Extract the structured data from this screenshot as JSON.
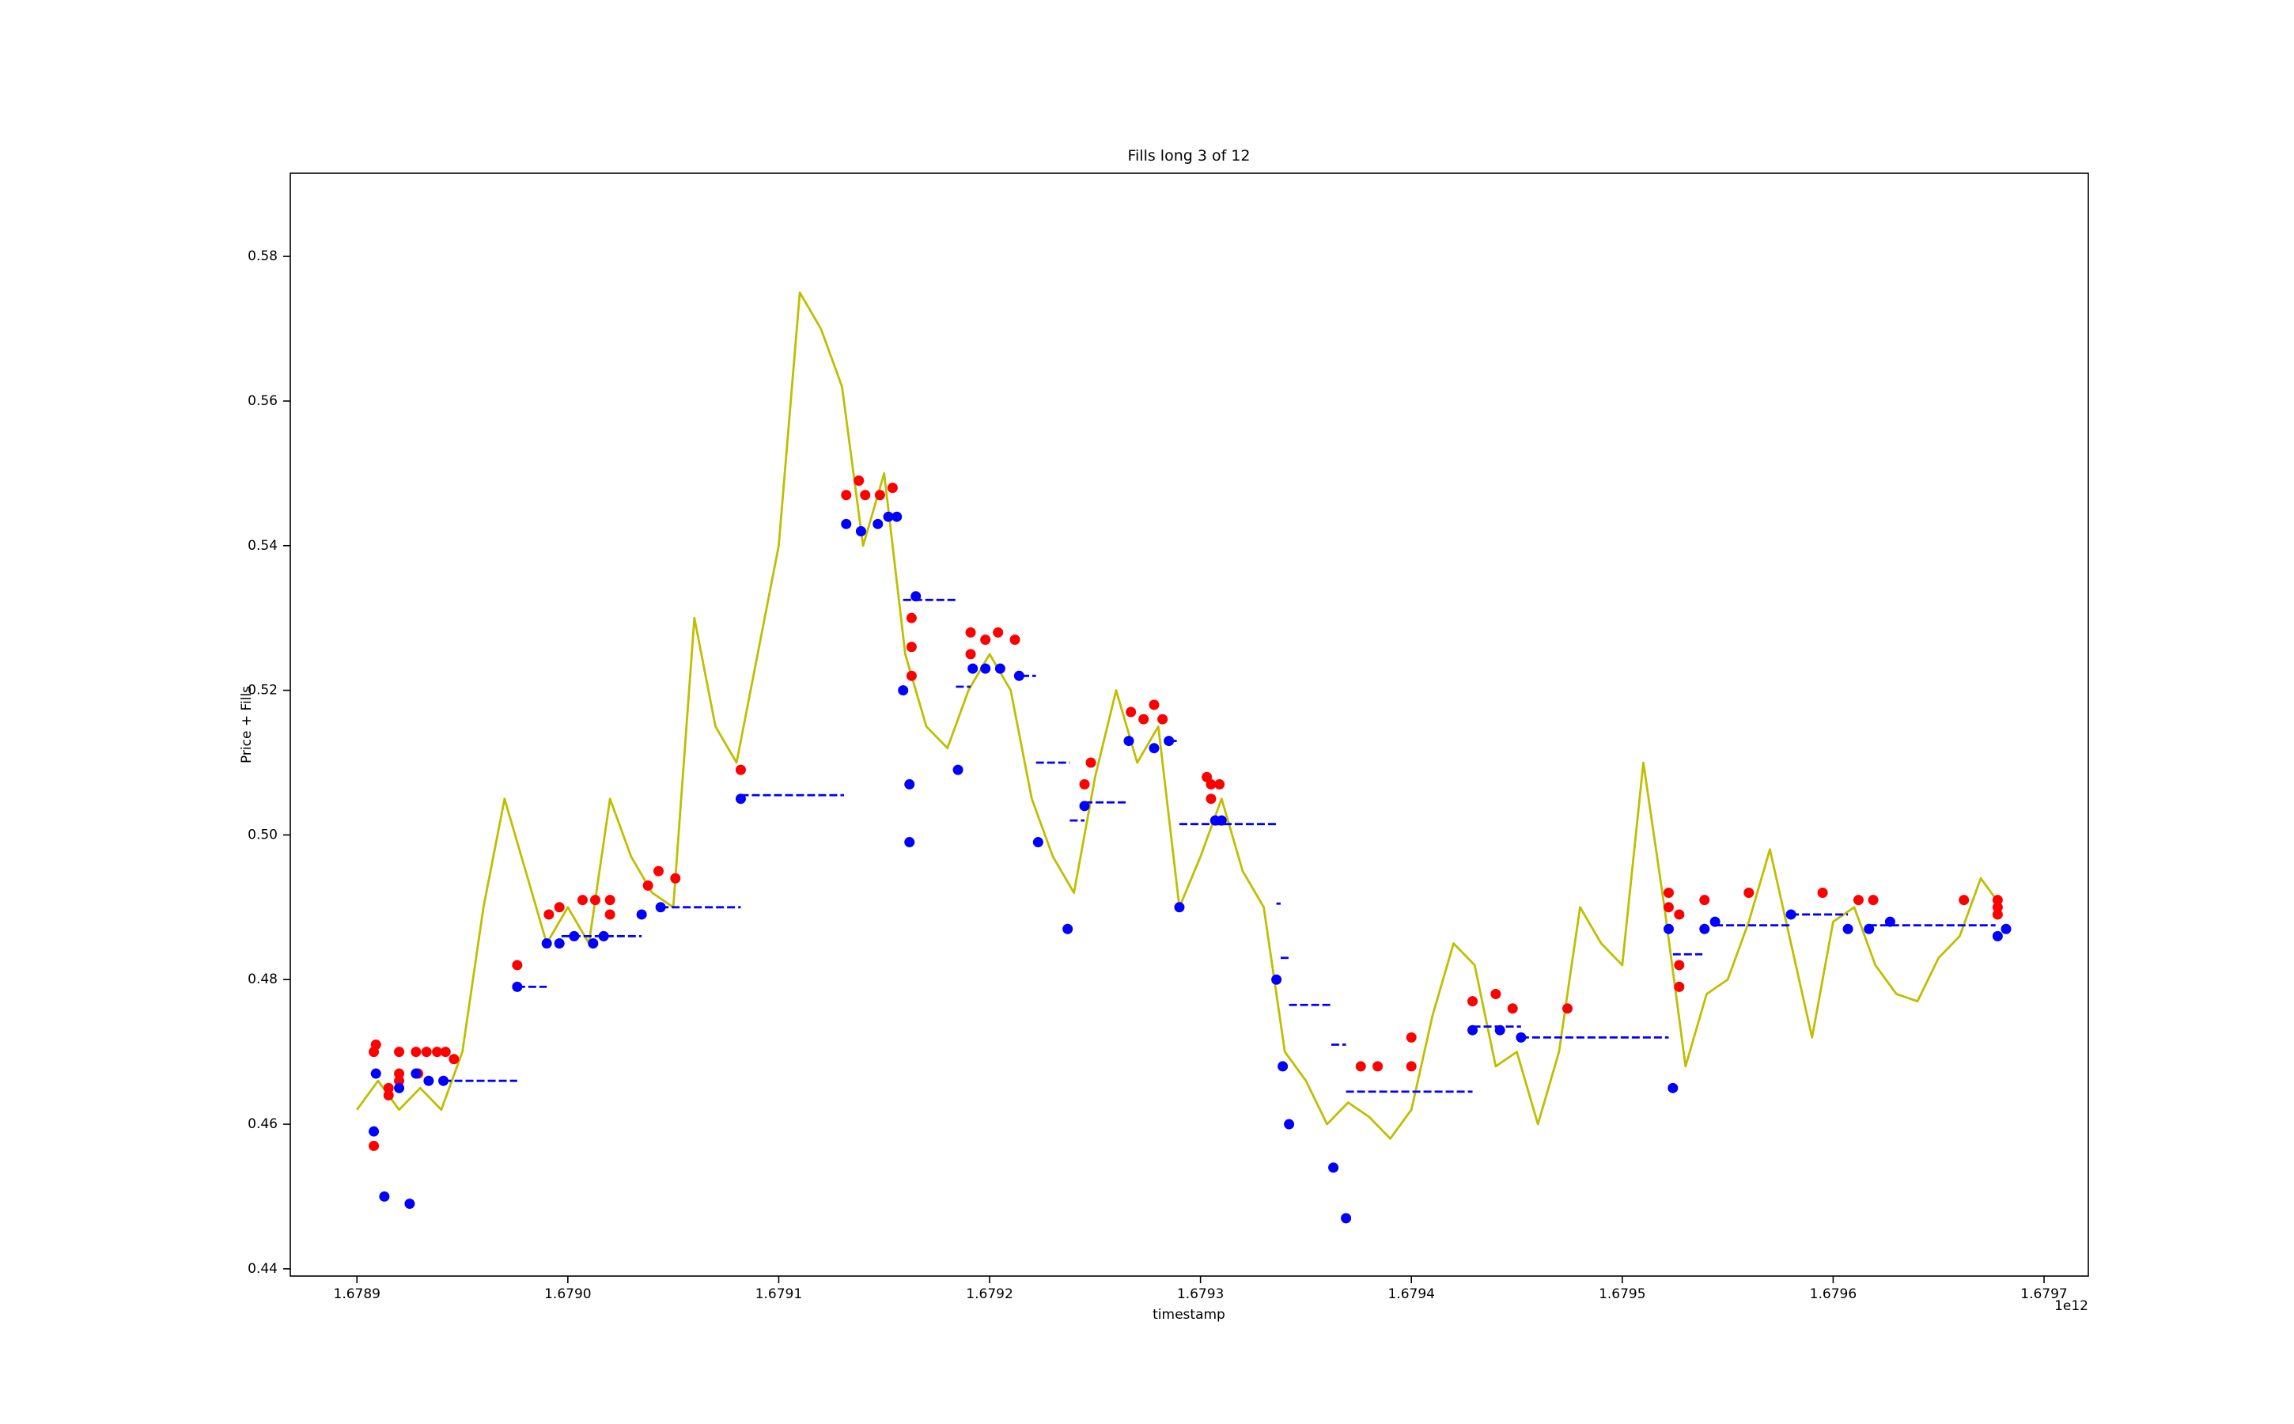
{
  "chart_data": {
    "type": "line",
    "title": "Fills long 3 of 12",
    "xlabel": "timestamp",
    "ylabel": "Price + Fills",
    "x_offset_label": "1e12",
    "xlim": [
      1678868400000,
      1679721000000
    ],
    "ylim": [
      0.439,
      0.5915
    ],
    "xticks": [
      {
        "value": 1678900000000,
        "label": "1.6789"
      },
      {
        "value": 1679000000000,
        "label": "1.6790"
      },
      {
        "value": 1679100000000,
        "label": "1.6791"
      },
      {
        "value": 1679200000000,
        "label": "1.6792"
      },
      {
        "value": 1679300000000,
        "label": "1.6793"
      },
      {
        "value": 1679400000000,
        "label": "1.6794"
      },
      {
        "value": 1679500000000,
        "label": "1.6795"
      },
      {
        "value": 1679600000000,
        "label": "1.6796"
      },
      {
        "value": 1679700000000,
        "label": "1.6797"
      }
    ],
    "yticks": [
      0.44,
      0.46,
      0.48,
      {
        "value": 0.5,
        "label": "0.50"
      },
      0.52,
      0.54,
      0.56,
      0.58
    ],
    "price": {
      "color": "#bfbf00",
      "x": [
        1678900000000,
        1678910000000,
        1678920000000,
        1678930000000,
        1678940000000,
        1678950000000,
        1678960000000,
        1678970000000,
        1678980000000,
        1678990000000,
        1679000000000,
        1679010000000,
        1679020000000,
        1679030000000,
        1679040000000,
        1679050000000,
        1679060000000,
        1679070000000,
        1679080000000,
        1679090000000,
        1679100000000,
        1679110000000,
        1679120000000,
        1679130000000,
        1679140000000,
        1679150000000,
        1679160000000,
        1679170000000,
        1679180000000,
        1679190000000,
        1679200000000,
        1679210000000,
        1679220000000,
        1679230000000,
        1679240000000,
        1679250000000,
        1679260000000,
        1679270000000,
        1679280000000,
        1679290000000,
        1679300000000,
        1679310000000,
        1679320000000,
        1679330000000,
        1679340000000,
        1679350000000,
        1679360000000,
        1679370000000,
        1679380000000,
        1679390000000,
        1679400000000,
        1679410000000,
        1679420000000,
        1679430000000,
        1679440000000,
        1679450000000,
        1679460000000,
        1679470000000,
        1679480000000,
        1679490000000,
        1679500000000,
        1679510000000,
        1679520000000,
        1679530000000,
        1679540000000,
        1679550000000,
        1679560000000,
        1679570000000,
        1679580000000,
        1679590000000,
        1679600000000,
        1679610000000,
        1679620000000,
        1679630000000,
        1679640000000,
        1679650000000,
        1679660000000,
        1679670000000,
        1679680000000
      ],
      "values": [
        0.462,
        0.466,
        0.462,
        0.465,
        0.462,
        0.47,
        0.49,
        0.505,
        0.495,
        0.485,
        0.49,
        0.485,
        0.505,
        0.497,
        0.492,
        0.49,
        0.53,
        0.515,
        0.51,
        0.525,
        0.54,
        0.575,
        0.57,
        0.562,
        0.54,
        0.55,
        0.525,
        0.515,
        0.512,
        0.52,
        0.525,
        0.52,
        0.505,
        0.497,
        0.492,
        0.508,
        0.52,
        0.51,
        0.515,
        0.49,
        0.497,
        0.505,
        0.495,
        0.49,
        0.47,
        0.466,
        0.46,
        0.463,
        0.461,
        0.458,
        0.462,
        0.475,
        0.485,
        0.482,
        0.468,
        0.47,
        0.46,
        0.47,
        0.49,
        0.485,
        0.482,
        0.51,
        0.49,
        0.468,
        0.478,
        0.48,
        0.488,
        0.498,
        0.485,
        0.472,
        0.488,
        0.49,
        0.482,
        0.478,
        0.477,
        0.483,
        0.486,
        0.494,
        0.49
      ]
    },
    "levels": {
      "color": "#0000ff",
      "x_start": [
        1678941000000,
        1678976000000,
        1678997000000,
        1679044000000,
        1679082000000,
        1679159000000,
        1679184000000,
        1679215000000,
        1679222000000,
        1679238000000,
        1679245000000,
        1679285000000,
        1679290000000,
        1679336000000,
        1679338000000,
        1679342000000,
        1679362000000,
        1679369000000,
        1679429000000,
        1679452000000,
        1679524000000,
        1679544000000,
        1679580000000,
        1679617000000
      ],
      "x_end": [
        1678976000000,
        1678990000000,
        1679035000000,
        1679082000000,
        1679131000000,
        1679184000000,
        1679191000000,
        1679222000000,
        1679238000000,
        1679245000000,
        1679266000000,
        1679290000000,
        1679336000000,
        1679338000000,
        1679342000000,
        1679362000000,
        1679369000000,
        1679429000000,
        1679452000000,
        1679522000000,
        1679538000000,
        1679580000000,
        1679607000000,
        1679677000000
      ],
      "values": [
        0.466,
        0.479,
        0.486,
        0.49,
        0.5055,
        0.5325,
        0.5205,
        0.522,
        0.51,
        0.502,
        0.5045,
        0.513,
        0.5015,
        0.4905,
        0.483,
        0.4765,
        0.471,
        0.4645,
        0.4735,
        0.472,
        0.4835,
        0.4875,
        0.489,
        0.4875
      ]
    },
    "fills": [
      {
        "color": "#ff0000",
        "x": [
          1678908000000,
          1678908000000,
          1678909000000,
          1678915000000,
          1678915000000,
          1678920000000,
          1678920000000,
          1678920000000,
          1678928000000,
          1678929000000,
          1678933000000,
          1678938000000,
          1678942000000,
          1678946000000,
          1678976000000,
          1678991000000,
          1678996000000,
          1679007000000,
          1679013000000,
          1679020000000,
          1679020000000,
          1679038000000,
          1679043000000,
          1679051000000,
          1679082000000,
          1679132000000,
          1679138000000,
          1679141000000,
          1679148000000,
          1679154000000,
          1679163000000,
          1679163000000,
          1679163000000,
          1679191000000,
          1679191000000,
          1679198000000,
          1679204000000,
          1679212000000,
          1679245000000,
          1679248000000,
          1679267000000,
          1679273000000,
          1679278000000,
          1679282000000,
          1679303000000,
          1679305000000,
          1679309000000,
          1679305000000,
          1679376000000,
          1679384000000,
          1679400000000,
          1679400000000,
          1679429000000,
          1679440000000,
          1679448000000,
          1679474000000,
          1679522000000,
          1679522000000,
          1679527000000,
          1679527000000,
          1679527000000,
          1679539000000,
          1679560000000,
          1679595000000,
          1679612000000,
          1679619000000,
          1679662000000,
          1679678000000,
          1679678000000,
          1679678000000
        ],
        "values": [
          0.457,
          0.47,
          0.471,
          0.465,
          0.464,
          0.47,
          0.467,
          0.466,
          0.47,
          0.467,
          0.47,
          0.47,
          0.47,
          0.469,
          0.482,
          0.489,
          0.49,
          0.491,
          0.491,
          0.491,
          0.489,
          0.493,
          0.495,
          0.494,
          0.509,
          0.547,
          0.549,
          0.547,
          0.547,
          0.548,
          0.53,
          0.526,
          0.522,
          0.528,
          0.525,
          0.527,
          0.528,
          0.527,
          0.507,
          0.51,
          0.517,
          0.516,
          0.518,
          0.516,
          0.508,
          0.507,
          0.507,
          0.505,
          0.468,
          0.468,
          0.472,
          0.468,
          0.477,
          0.478,
          0.476,
          0.476,
          0.492,
          0.49,
          0.489,
          0.482,
          0.479,
          0.491,
          0.492,
          0.492,
          0.491,
          0.491,
          0.491,
          0.491,
          0.49,
          0.489
        ]
      },
      {
        "color": "#0000ff",
        "x": [
          1678908000000,
          1678909000000,
          1678913000000,
          1678920000000,
          1678925000000,
          1678928000000,
          1678934000000,
          1678941000000,
          1678976000000,
          1678990000000,
          1678996000000,
          1679003000000,
          1679012000000,
          1679017000000,
          1679035000000,
          1679044000000,
          1679082000000,
          1679132000000,
          1679139000000,
          1679147000000,
          1679152000000,
          1679156000000,
          1679159000000,
          1679162000000,
          1679162000000,
          1679165000000,
          1679185000000,
          1679192000000,
          1679198000000,
          1679205000000,
          1679214000000,
          1679223000000,
          1679237000000,
          1679245000000,
          1679266000000,
          1679278000000,
          1679285000000,
          1679290000000,
          1679307000000,
          1679310000000,
          1679336000000,
          1679339000000,
          1679342000000,
          1679363000000,
          1679369000000,
          1679429000000,
          1679442000000,
          1679452000000,
          1679522000000,
          1679524000000,
          1679539000000,
          1679544000000,
          1679580000000,
          1679607000000,
          1679617000000,
          1679627000000,
          1679678000000,
          1679682000000
        ],
        "values": [
          0.459,
          0.467,
          0.45,
          0.465,
          0.449,
          0.467,
          0.466,
          0.466,
          0.479,
          0.485,
          0.485,
          0.486,
          0.485,
          0.486,
          0.489,
          0.49,
          0.505,
          0.543,
          0.542,
          0.543,
          0.544,
          0.544,
          0.52,
          0.507,
          0.499,
          0.533,
          0.509,
          0.523,
          0.523,
          0.523,
          0.522,
          0.499,
          0.487,
          0.504,
          0.513,
          0.512,
          0.513,
          0.49,
          0.502,
          0.502,
          0.48,
          0.468,
          0.46,
          0.454,
          0.447,
          0.473,
          0.473,
          0.472,
          0.487,
          0.465,
          0.487,
          0.488,
          0.489,
          0.487,
          0.487,
          0.488,
          0.486,
          0.487
        ]
      }
    ]
  }
}
